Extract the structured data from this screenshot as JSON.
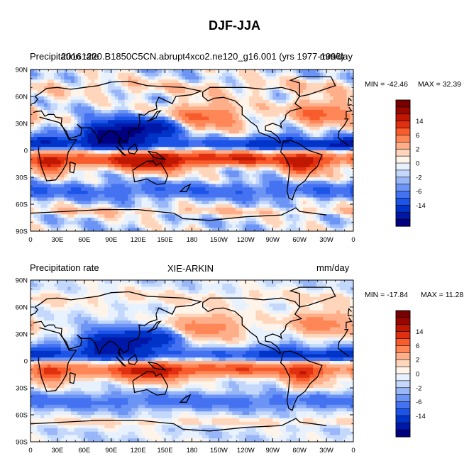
{
  "main_title": "DJF-JJA",
  "panels": [
    {
      "left_label": "Precipitation rate",
      "center_label": "20161220.B1850C5CN.abrupt4xco2.ne120_g16.001 (yrs 1977-1996)",
      "right_label": "mm/day",
      "min_text": "MIN = -42.46",
      "max_text": "MAX =  32.39"
    },
    {
      "left_label": "Precipitation rate",
      "center_label": "XIE-ARKIN",
      "right_label": "mm/day",
      "min_text": "MIN = -17.84",
      "max_text": "MAX = 11.28"
    }
  ],
  "colorbar": {
    "colors": [
      "#000080",
      "#0018a8",
      "#0034c8",
      "#1c54e8",
      "#4472f0",
      "#6c94f4",
      "#98b6f8",
      "#c4d8fc",
      "#e8f2ff",
      "#fff4ea",
      "#ffd6bc",
      "#ffae8a",
      "#ff8656",
      "#f85c2c",
      "#e03010",
      "#c01800",
      "#980800",
      "#780000"
    ],
    "labels": [
      "-14",
      "-6",
      "-2",
      "0",
      "2",
      "6",
      "14"
    ]
  },
  "chart_data": [
    {
      "type": "heatmap",
      "title": "20161220.B1850C5CN.abrupt4xco2.ne120_g16.001 (yrs 1977-1996)",
      "subtitle": "DJF-JJA",
      "units": "mm/day",
      "x_tick_labels": [
        "0",
        "30E",
        "60E",
        "90E",
        "120E",
        "150E",
        "180",
        "150W",
        "120W",
        "90W",
        "60W",
        "30W",
        "0"
      ],
      "y_tick_labels": [
        "90N",
        "60N",
        "30N",
        "0",
        "30S",
        "60S",
        "90S"
      ],
      "xlim": [
        0,
        360
      ],
      "ylim": [
        -90,
        90
      ],
      "min": -42.46,
      "max": 32.39,
      "contour_levels": [
        -14,
        -6,
        -2,
        0,
        2,
        6,
        14
      ]
    },
    {
      "type": "heatmap",
      "title": "XIE-ARKIN",
      "units": "mm/day",
      "x_tick_labels": [
        "0",
        "30E",
        "60E",
        "90E",
        "120E",
        "150E",
        "180",
        "150W",
        "120W",
        "90W",
        "60W",
        "30W",
        "0"
      ],
      "y_tick_labels": [
        "90N",
        "60N",
        "30N",
        "0",
        "30S",
        "60S",
        "90S"
      ],
      "xlim": [
        0,
        360
      ],
      "ylim": [
        -90,
        90
      ],
      "min": -17.84,
      "max": 11.28,
      "contour_levels": [
        -14,
        -6,
        -2,
        0,
        2,
        6,
        14
      ]
    }
  ]
}
